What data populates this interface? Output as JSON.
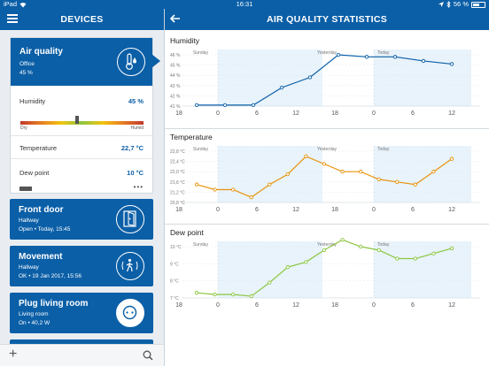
{
  "statusbar": {
    "device": "iPad",
    "time": "16:31",
    "battery": "56 %"
  },
  "left_header": {
    "title": "DEVICES"
  },
  "right_header": {
    "title": "AIR QUALITY STATISTICS"
  },
  "devices": {
    "air_quality": {
      "name": "Air quality",
      "room": "Office",
      "value": "45 %",
      "rows": [
        {
          "label": "Humidity",
          "value": "45 %"
        },
        {
          "label": "Temperature",
          "value": "22,7 °C"
        },
        {
          "label": "Dew point",
          "value": "10 °C"
        }
      ],
      "humidity_scale": {
        "low": "Dry",
        "high": "Humid",
        "level": 0.45
      },
      "more": "•••"
    },
    "front_door": {
      "name": "Front door",
      "room": "Hallway",
      "status": "Open • Today, 15:45"
    },
    "movement": {
      "name": "Movement",
      "room": "Hallway",
      "status": "OK • 19 Jan 2017, 15:56"
    },
    "plug": {
      "name": "Plug living room",
      "room": "Living room",
      "status": "On • 40,2 W"
    }
  },
  "toolbar": {
    "add_icon": "plus-icon",
    "search_icon": "search-icon"
  },
  "colors": {
    "primary": "#0b5fa7",
    "humidity": "#0b5fa7",
    "temperature": "#e8930c",
    "dew_point": "#8cc63f",
    "highlight": "#e8f3fb"
  },
  "chart_data": [
    {
      "type": "line",
      "title": "Humidity",
      "x_ticks": [
        "18",
        "0",
        "6",
        "12",
        "18",
        "0",
        "6",
        "12"
      ],
      "day_labels": [
        "Sunday",
        "Yesterday",
        "Today"
      ],
      "y_ticks": [
        "41 %",
        "42 %",
        "43 %",
        "44 %",
        "45 %",
        "46 %"
      ],
      "ylim": [
        41,
        46
      ],
      "series": [
        {
          "values": [
            41.1,
            41.1,
            41.1,
            42.8,
            43.8,
            46.0,
            45.8,
            45.8,
            45.4,
            45.1
          ]
        }
      ]
    },
    {
      "type": "line",
      "title": "Temperature",
      "x_ticks": [
        "18",
        "0",
        "6",
        "12",
        "18",
        "0",
        "6",
        "12"
      ],
      "day_labels": [
        "Sunday",
        "Yesterday",
        "Today"
      ],
      "y_ticks": [
        "20,8 °C",
        "21,2 °C",
        "21,6 °C",
        "22,0 °C",
        "22,4 °C",
        "22,8 °C"
      ],
      "ylim": [
        20.8,
        22.8
      ],
      "series": [
        {
          "values": [
            21.5,
            21.3,
            21.3,
            21.0,
            21.5,
            21.9,
            22.6,
            22.3,
            22.0,
            22.0,
            21.7,
            21.6,
            21.5,
            22.0,
            22.5
          ]
        }
      ]
    },
    {
      "type": "line",
      "title": "Dew point",
      "x_ticks": [
        "18",
        "0",
        "6",
        "12",
        "18",
        "0",
        "6",
        "12"
      ],
      "day_labels": [
        "Sunday",
        "Yesterday",
        "Today"
      ],
      "y_ticks": [
        "7 °C",
        "8 °C",
        "9 °C",
        "10 °C"
      ],
      "ylim": [
        7,
        10
      ],
      "series": [
        {
          "values": [
            7.3,
            7.2,
            7.2,
            7.1,
            7.9,
            8.8,
            9.1,
            9.8,
            10.4,
            10.0,
            9.8,
            9.3,
            9.3,
            9.6,
            9.9
          ]
        }
      ]
    }
  ]
}
